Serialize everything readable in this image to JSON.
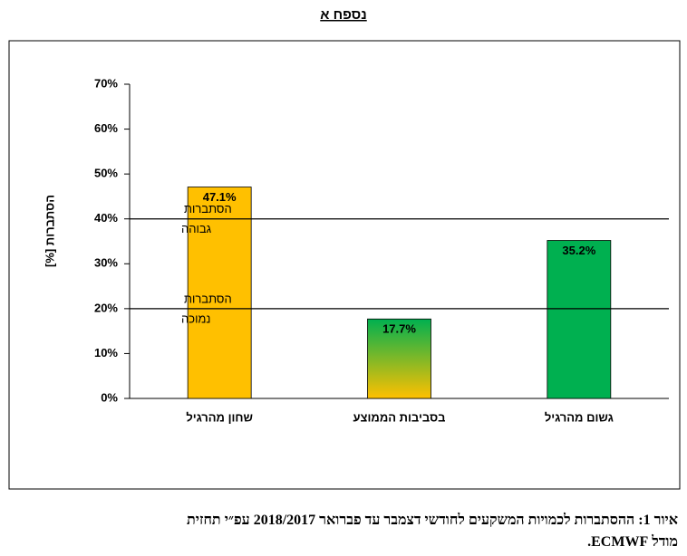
{
  "chart_data": {
    "type": "bar",
    "title": "נספח א",
    "y_label": "[%] הסתברות",
    "categories": [
      "שחון מהרגיל",
      "בסביבות הממוצע",
      "גשום מהרגיל"
    ],
    "values": [
      47.1,
      17.7,
      35.2
    ],
    "value_labels": [
      "47.1%",
      "17.7%",
      "35.2%"
    ],
    "colors": [
      "#ffc000",
      [
        "#00b050",
        "#ffc000"
      ],
      "#00b050"
    ],
    "ylim": [
      0,
      70
    ],
    "yticks": [
      {
        "value": 0,
        "label": "0%"
      },
      {
        "value": 10,
        "label": "10%"
      },
      {
        "value": 20,
        "label": "20%"
      },
      {
        "value": 30,
        "label": "30%"
      },
      {
        "value": 40,
        "label": "40%"
      },
      {
        "value": 50,
        "label": "50%"
      },
      {
        "value": 60,
        "label": "60%"
      },
      {
        "value": 70,
        "label": "70%"
      }
    ],
    "reference_lines": [
      {
        "value": 40,
        "label": [
          "הסתברות",
          "גבוהה"
        ]
      },
      {
        "value": 20,
        "label": [
          "הסתברות",
          "נמוכה"
        ]
      }
    ],
    "caption": [
      "איור 1: ההסתברות לכמויות המשקעים לחודשי דצמבר עד פברואר 2018/2017 עפ״י תחזית",
      "מודל ECMWF."
    ]
  }
}
